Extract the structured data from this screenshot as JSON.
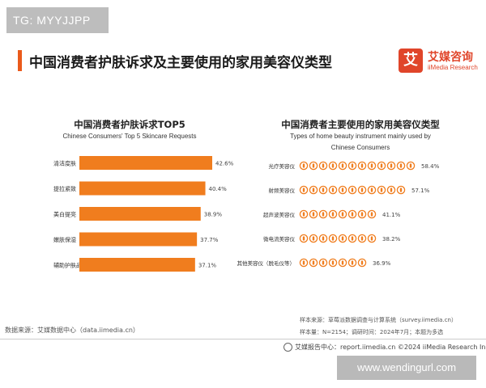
{
  "badge": "TG: MYYJJPP",
  "main_title": "中国消费者护肤诉求及主要使用的家用美容仪类型",
  "brand": {
    "logo_char": "艾",
    "name_cn": "艾媒咨询",
    "name_en": "iiMedia Research"
  },
  "colors": {
    "accent": "#ea5a1b",
    "bar": "#f07d1e",
    "brand": "#e0452a"
  },
  "chart_data": [
    {
      "type": "bar",
      "orientation": "horizontal",
      "title": "中国消费者护肤诉求TOP5",
      "subtitle": "Chinese Consumers' Top 5 Skincare Requests",
      "categories": [
        "清洁度肤",
        "提拉紧致",
        "美白提亮",
        "嫩肤保湿",
        "辅助护肤品吸收"
      ],
      "values": [
        42.6,
        40.4,
        38.9,
        37.7,
        37.1
      ],
      "value_labels": [
        "42.6%",
        "40.4%",
        "38.9%",
        "37.7%",
        "37.1%"
      ],
      "xlim": [
        0,
        50
      ],
      "grid": false
    },
    {
      "type": "pictograph",
      "title": "中国消费者主要使用的家用美容仪类型",
      "subtitle_line1": "Types of home beauty instrument mainly used by",
      "subtitle_line2": "Chinese Consumers",
      "categories": [
        "光疗美容仪",
        "射频美容仪",
        "超声波美容仪",
        "微电流美容仪",
        "其他美容仪（脱毛仪等）"
      ],
      "values": [
        58.4,
        57.1,
        41.1,
        38.2,
        36.9
      ],
      "value_labels": [
        "58.4%",
        "57.1%",
        "41.1%",
        "38.2%",
        "36.9%"
      ],
      "icon": "beauty-device-icon",
      "icon_unit": 5
    }
  ],
  "source_left": "数据来源：艾媒数据中心（data.iimedia.cn）",
  "source_right_1": "样本来源：草莓派数据调查与计算系统（survey.iimedia.cn）",
  "source_right_2": "样本量：N=2154；调研时间：2024年7月；本题为多选",
  "footer": "艾媒报告中心：report.iimedia.cn     ©2024  iiMedia Research  Inc",
  "watermark": "www.wendingurl.com"
}
